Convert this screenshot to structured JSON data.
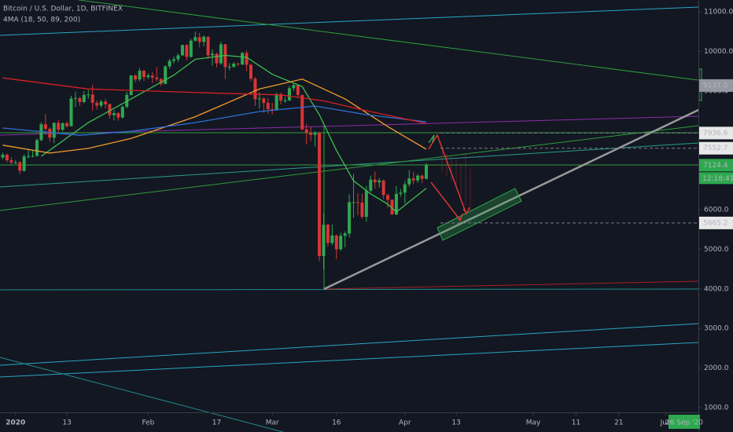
{
  "chart_data": {
    "type": "candlestick",
    "title": "Bitcoin / U.S. Dollar, 1D, BITFINEX",
    "subtitle": "4MA (18, 50, 89, 200)",
    "up_color": "#2ea84f",
    "down_color": "#d83535",
    "open": [
      7320,
      7390,
      7250,
      7195,
      7200,
      6985,
      7345,
      7355,
      7360,
      7760,
      8160,
      8045,
      7820,
      8195,
      8020,
      8185,
      8110,
      8810,
      8820,
      8720,
      8900,
      8910,
      8700,
      8630,
      8730,
      8665,
      8390,
      8440,
      8330,
      8600,
      8900,
      9390,
      9290,
      9510,
      9350,
      9390,
      9340,
      9300,
      9180,
      9620,
      9760,
      9800,
      9900,
      10160,
      9860,
      10270,
      10360,
      10240,
      10370,
      9900,
      9940,
      9700,
      10180,
      9600,
      9610,
      9690,
      9670,
      9960,
      9660,
      9310,
      8790,
      8810,
      8700,
      8540,
      8530,
      8920,
      8760,
      8760,
      9070,
      9150,
      8900,
      8030,
      7940,
      7890,
      7940,
      4830,
      5620,
      5160,
      5350,
      5000,
      5340,
      5400,
      6190,
      6190,
      6180,
      5820,
      6480,
      6760,
      6690,
      6740,
      6370,
      6250,
      5880,
      6400,
      6430,
      6640,
      6790,
      6740,
      6860,
      6780
    ],
    "high": [
      7440,
      7420,
      7330,
      7260,
      7230,
      7400,
      7540,
      7500,
      7800,
      8210,
      8420,
      8080,
      8200,
      8270,
      8210,
      8230,
      8880,
      8980,
      8850,
      9000,
      9030,
      9150,
      8760,
      8780,
      8790,
      8680,
      8520,
      8470,
      8630,
      8980,
      9400,
      9420,
      9580,
      9530,
      9440,
      9480,
      9600,
      9330,
      9650,
      9810,
      9870,
      9950,
      10170,
      10180,
      10320,
      10500,
      10470,
      10400,
      10380,
      10050,
      9970,
      10250,
      10190,
      9700,
      9730,
      9720,
      9990,
      10020,
      9690,
      9350,
      8970,
      8840,
      8820,
      8700,
      8960,
      8960,
      8850,
      9130,
      9190,
      9160,
      8900,
      8170,
      8100,
      7990,
      7970,
      5900,
      5650,
      5630,
      5370,
      5420,
      5450,
      6390,
      6900,
      6420,
      6400,
      6600,
      6860,
      6960,
      6800,
      6760,
      6400,
      6260,
      6600,
      6520,
      6730,
      7000,
      6960,
      6900,
      6890,
      7180
    ],
    "low": [
      7270,
      7200,
      7130,
      7150,
      6900,
      6950,
      7300,
      7320,
      7340,
      7730,
      7900,
      7720,
      7680,
      7960,
      7980,
      8070,
      8100,
      8600,
      8620,
      8690,
      8800,
      8500,
      8530,
      8580,
      8560,
      8300,
      8260,
      8250,
      8300,
      8560,
      8880,
      9220,
      9240,
      9250,
      9300,
      9200,
      9240,
      9120,
      9170,
      9560,
      9700,
      9730,
      9880,
      9770,
      9840,
      10250,
      10100,
      10130,
      9800,
      9640,
      9600,
      9660,
      9300,
      9520,
      9580,
      9620,
      9650,
      9500,
      9250,
      8620,
      8550,
      8450,
      8420,
      8410,
      8500,
      8660,
      8700,
      8750,
      9000,
      8840,
      8000,
      7650,
      7730,
      7600,
      4700,
      4500,
      5070,
      5100,
      4750,
      4960,
      5050,
      5300,
      5800,
      5860,
      5780,
      5700,
      6450,
      6530,
      6560,
      6270,
      6050,
      5870,
      5860,
      6330,
      6160,
      6580,
      6640,
      6680,
      6670,
      6770
    ],
    "close": [
      7390,
      7250,
      7195,
      7200,
      6985,
      7345,
      7355,
      7360,
      7760,
      8160,
      8045,
      7820,
      8195,
      8020,
      8185,
      8110,
      8810,
      8820,
      8720,
      8900,
      8910,
      8700,
      8630,
      8730,
      8665,
      8390,
      8440,
      8330,
      8600,
      8900,
      9390,
      9290,
      9510,
      9350,
      9390,
      9340,
      9300,
      9180,
      9620,
      9760,
      9800,
      9900,
      10160,
      9860,
      10270,
      10360,
      10240,
      10370,
      9900,
      9940,
      9700,
      10180,
      9600,
      9610,
      9690,
      9670,
      9960,
      9660,
      9310,
      8790,
      8810,
      8700,
      8540,
      8530,
      8920,
      8760,
      8760,
      9070,
      9150,
      8900,
      8030,
      7940,
      7890,
      7940,
      4830,
      5620,
      5160,
      5350,
      5000,
      5340,
      5400,
      6190,
      6190,
      6180,
      5820,
      6480,
      6760,
      6690,
      6740,
      6370,
      6250,
      5880,
      6400,
      6430,
      6640,
      6790,
      6740,
      6860,
      6780,
      7124.4
    ],
    "series": [
      {
        "color": "#3fbf4f",
        "x": [
          9,
          20,
          30,
          40,
          45,
          52,
          57,
          63,
          70,
          74,
          78,
          82,
          86,
          90,
          92,
          95,
          99
        ],
        "values": [
          7350,
          8200,
          8800,
          9400,
          9800,
          9900,
          9850,
          9420,
          9110,
          8400,
          7500,
          6730,
          6400,
          6140,
          5940,
          6200,
          6540
        ]
      },
      {
        "color": "#f59c2a",
        "x": [
          0,
          11,
          20,
          30,
          45,
          60,
          70,
          80,
          90,
          99
        ],
        "values": [
          7630,
          7430,
          7550,
          7800,
          8350,
          9050,
          9300,
          8800,
          8100,
          7530
        ]
      },
      {
        "color": "#2f6fd6",
        "x": [
          0,
          18,
          30,
          45,
          60,
          73,
          85,
          99
        ],
        "values": [
          8064,
          7880,
          7980,
          8200,
          8480,
          8620,
          8400,
          8220
        ]
      },
      {
        "color": "#d81f26",
        "x": [
          0,
          20,
          48,
          65,
          75,
          85,
          99
        ],
        "values": [
          9330,
          9050,
          8950,
          8900,
          8750,
          8500,
          8180
        ]
      }
    ],
    "xlim": [
      -0.64,
      162.6
    ],
    "xticks": [
      {
        "value": 3,
        "label": "2020"
      },
      {
        "value": 15,
        "label": "13"
      },
      {
        "value": 34,
        "label": "Feb"
      },
      {
        "value": 50,
        "label": "17"
      },
      {
        "value": 63,
        "label": "Mar"
      },
      {
        "value": 78,
        "label": "16"
      },
      {
        "value": 94,
        "label": "Apr"
      },
      {
        "value": 106,
        "label": "13"
      },
      {
        "value": 124,
        "label": "May"
      },
      {
        "value": 134,
        "label": "11"
      },
      {
        "value": 144,
        "label": "21"
      },
      {
        "value": 155,
        "label": "Jun"
      }
    ],
    "ylim": [
      880,
      11298
    ],
    "yticks": [
      {
        "value": 1000,
        "label": "1000.0"
      },
      {
        "value": 2000,
        "label": "2000.0"
      },
      {
        "value": 3000,
        "label": "3000.0"
      },
      {
        "value": 4000,
        "label": "4000.0"
      },
      {
        "value": 5000,
        "label": "5000.0"
      },
      {
        "value": 6000,
        "label": "6000.0"
      },
      {
        "value": 9000,
        "label": "9000.0"
      },
      {
        "value": 10000,
        "label": "10000.0"
      },
      {
        "value": 11000,
        "label": "11000.0"
      }
    ],
    "price_labels": [
      {
        "value": 9137,
        "label": "9137.0",
        "color": "#9598a1"
      },
      {
        "value": 7936.6,
        "color": "#e8e8e8"
      },
      {
        "value": 7552.7,
        "color": "#e8e8e8"
      },
      {
        "value": 7124.4,
        "color": "#2ea84f"
      },
      {
        "value": 5665.2,
        "color": "#e8e8e8"
      }
    ],
    "countdown": "12:18:41",
    "cursor_date": "26 Sep '20"
  }
}
